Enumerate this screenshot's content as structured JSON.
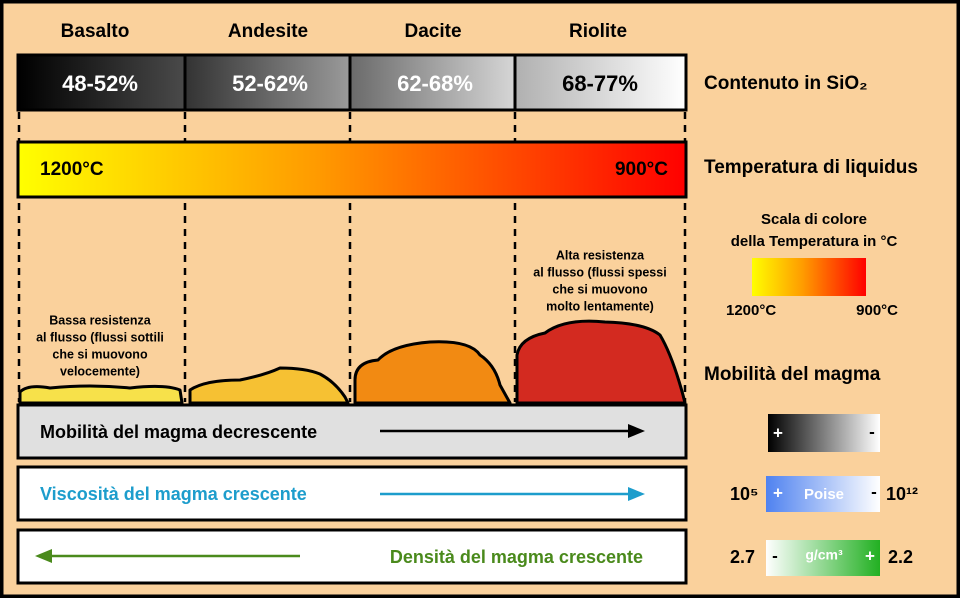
{
  "rocks": [
    {
      "name": "Basalto",
      "silica": "48-52%"
    },
    {
      "name": "Andesite",
      "silica": "52-62%"
    },
    {
      "name": "Dacite",
      "silica": "62-68%"
    },
    {
      "name": "Riolite",
      "silica": "68-77%"
    }
  ],
  "silica_label": "Contenuto in SiO₂",
  "temperature": {
    "label": "Temperatura di liquidus",
    "start": "1200°C",
    "end": "900°C"
  },
  "flow": {
    "low": [
      "Bassa resistenza",
      "al flusso (flussi sottili",
      "che si muovono",
      "velocemente)"
    ],
    "high": [
      "Alta resistenza",
      "al flusso (flussi spessi",
      "che si muovono",
      "molto lentamente)"
    ]
  },
  "legend": {
    "title": [
      "Scala di colore",
      "della Temperatura in °C"
    ],
    "min": "1200°C",
    "max": "900°C"
  },
  "mobility": {
    "label": "Mobilità del magma",
    "bar": "Mobilità del magma decrescente",
    "plus": "+",
    "minus": "-"
  },
  "viscosity": {
    "bar": "Viscosità del magma crescente",
    "low": "10⁵",
    "high": "10¹²",
    "unit": "Poise",
    "plus": "+",
    "minus": "-"
  },
  "density": {
    "bar": "Densità del magma crescente",
    "high": "2.7",
    "low": "2.2",
    "unit": "g/cm³",
    "plus": "+",
    "minus": "-"
  }
}
